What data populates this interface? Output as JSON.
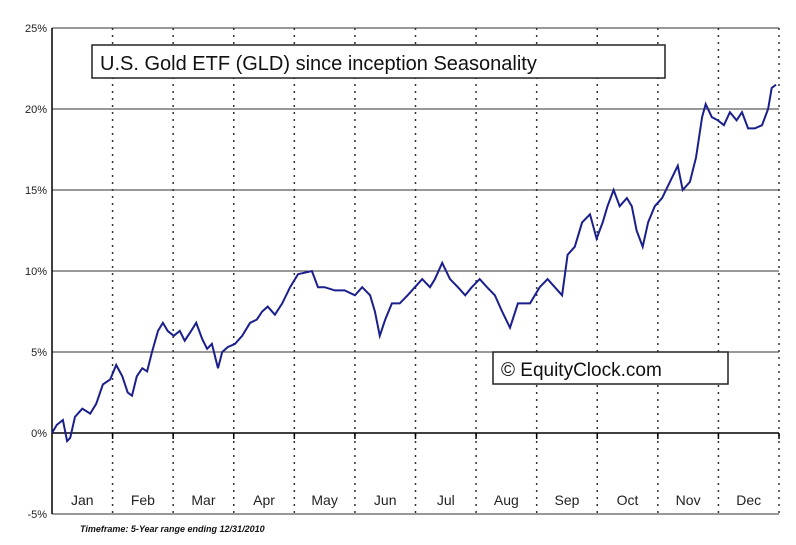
{
  "chart_data": {
    "type": "line",
    "title": "U.S. Gold ETF (GLD) since inception Seasonality",
    "watermark": "© EquityClock.com",
    "footnote": "Timeframe: 5-Year range ending 12/31/2010",
    "xlabel": "",
    "ylabel": "",
    "categories": [
      "Jan",
      "Feb",
      "Mar",
      "Apr",
      "May",
      "Jun",
      "Jul",
      "Aug",
      "Sep",
      "Oct",
      "Nov",
      "Dec"
    ],
    "yticks": [
      "25%",
      "20%",
      "15%",
      "10%",
      "5%",
      "0%",
      "-5%"
    ],
    "ytick_values": [
      25,
      20,
      15,
      10,
      5,
      0,
      -5
    ],
    "xlim": [
      0,
      12
    ],
    "ylim": [
      -5,
      25
    ],
    "x_unit": "months elapsed in year",
    "grid": {
      "horizontal": "solid",
      "vertical": "dotted at month boundaries"
    },
    "line_color": "#1a1f8c",
    "series": [
      {
        "x": [
          0,
          0.08,
          0.18,
          0.25,
          0.3,
          0.38,
          0.5,
          0.63,
          0.73,
          0.84,
          0.96,
          1.06,
          1.16,
          1.25,
          1.32,
          1.4,
          1.49,
          1.57,
          1.65,
          1.75,
          1.83,
          1.91,
          2.01,
          2.11,
          2.19,
          2.28,
          2.38,
          2.48,
          2.56,
          2.64,
          2.74,
          2.81,
          2.9,
          3.02,
          3.14,
          3.27,
          3.38,
          3.47,
          3.56,
          3.68,
          3.8,
          3.93,
          4.06,
          4.29,
          4.39,
          4.5,
          4.67,
          4.83,
          5.0,
          5.12,
          5.25,
          5.33,
          5.41,
          5.5,
          5.61,
          5.74,
          5.87,
          5.99,
          6.11,
          6.24,
          6.32,
          6.44,
          6.57,
          6.7,
          6.82,
          6.93,
          7.06,
          7.18,
          7.31,
          7.43,
          7.56,
          7.69,
          7.89,
          8.05,
          8.18,
          8.3,
          8.42,
          8.51,
          8.63,
          8.75,
          8.88,
          8.99,
          9.09,
          9.17,
          9.27,
          9.37,
          9.49,
          9.57,
          9.65,
          9.75,
          9.84,
          9.95,
          10.07,
          10.2,
          10.33,
          10.41,
          10.53,
          10.63,
          10.73,
          10.79,
          10.89,
          10.99,
          11.09,
          11.19,
          11.3,
          11.39,
          11.49,
          11.6,
          11.72,
          11.82,
          11.88,
          11.95
        ],
        "y": [
          0,
          0.5,
          0.8,
          -0.5,
          -0.3,
          1,
          1.5,
          1.2,
          1.8,
          3,
          3.3,
          4.2,
          3.5,
          2.5,
          2.3,
          3.5,
          4,
          3.8,
          5,
          6.3,
          6.8,
          6.3,
          6.0,
          6.3,
          5.7,
          6.2,
          6.8,
          5.8,
          5.2,
          5.5,
          4,
          5,
          5.3,
          5.5,
          6,
          6.8,
          7,
          7.5,
          7.8,
          7.3,
          8,
          9,
          9.8,
          10,
          9,
          9,
          8.8,
          8.8,
          8.5,
          9,
          8.5,
          7.5,
          6,
          7,
          8,
          8,
          8.5,
          9,
          9.5,
          9,
          9.5,
          10.5,
          9.5,
          9,
          8.5,
          9,
          9.5,
          9,
          8.5,
          7.5,
          6.5,
          8,
          8,
          9,
          9.5,
          9,
          8.5,
          11,
          11.5,
          13,
          13.5,
          12,
          13,
          14,
          15,
          14,
          14.5,
          14,
          12.5,
          11.5,
          13,
          14,
          14.5,
          15.5,
          16.5,
          15,
          15.5,
          17,
          19.5,
          20.3,
          19.5,
          19.3,
          19,
          19.8,
          19.3,
          19.8,
          18.8,
          18.8,
          19,
          20,
          21.3,
          21.5
        ]
      }
    ]
  }
}
